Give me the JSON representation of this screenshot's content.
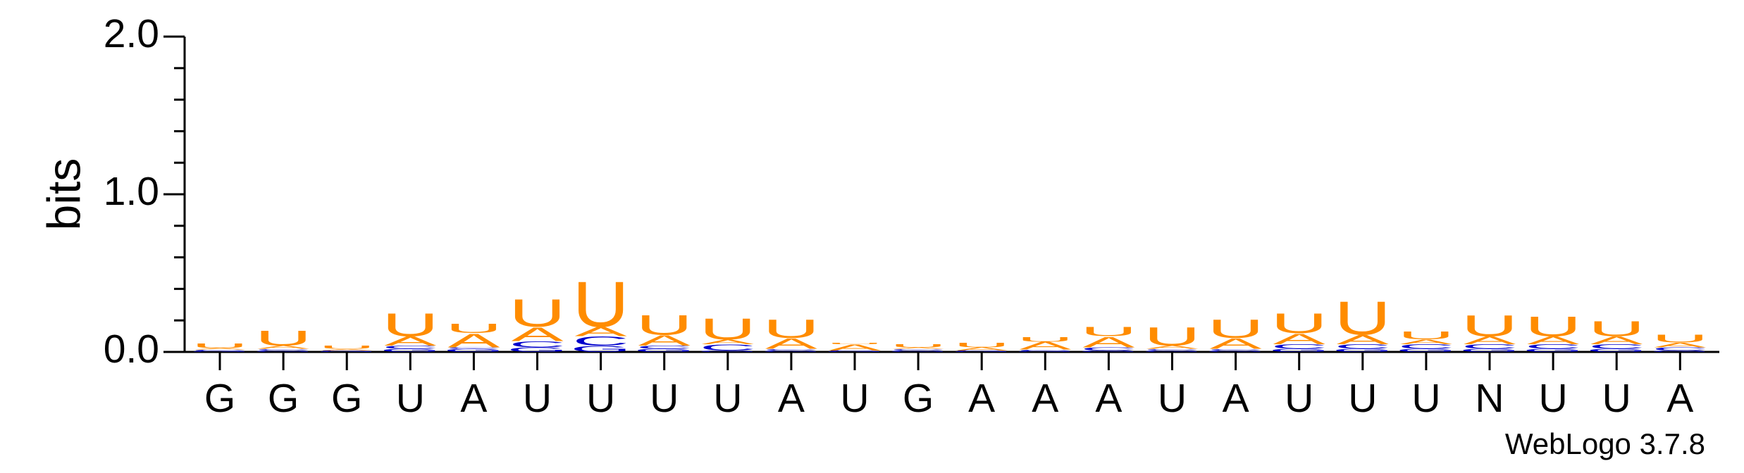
{
  "chart_data": {
    "type": "logo",
    "ylabel": "bits",
    "footer": "WebLogo 3.7.8",
    "categories": [
      "G",
      "G",
      "G",
      "U",
      "A",
      "U",
      "U",
      "U",
      "U",
      "A",
      "U",
      "G",
      "A",
      "A",
      "A",
      "U",
      "A",
      "U",
      "U",
      "U",
      "N",
      "U",
      "U",
      "A"
    ],
    "series": [
      {
        "name": "G",
        "color": "#0000cc",
        "values": [
          0.005,
          0.01,
          0.005,
          0.02,
          0.02,
          0.03,
          0.04,
          0.02,
          0.01,
          0.01,
          0.005,
          0.01,
          0.005,
          0.005,
          0.01,
          0.01,
          0.01,
          0.02,
          0.02,
          0.02,
          0.02,
          0.02,
          0.02,
          0.01
        ]
      },
      {
        "name": "C",
        "color": "#0000cc",
        "values": [
          0.01,
          0.01,
          0.005,
          0.02,
          0.01,
          0.04,
          0.06,
          0.02,
          0.04,
          0.01,
          0.005,
          0.01,
          0.005,
          0.01,
          0.02,
          0.01,
          0.01,
          0.03,
          0.03,
          0.03,
          0.03,
          0.03,
          0.03,
          0.02
        ]
      },
      {
        "name": "A",
        "color": "#ff8c00",
        "values": [
          0.01,
          0.02,
          0.01,
          0.06,
          0.09,
          0.09,
          0.06,
          0.07,
          0.03,
          0.07,
          0.04,
          0.01,
          0.02,
          0.05,
          0.07,
          0.02,
          0.07,
          0.07,
          0.06,
          0.03,
          0.05,
          0.05,
          0.05,
          0.03
        ]
      },
      {
        "name": "U",
        "color": "#ff8c00",
        "values": [
          0.03,
          0.1,
          0.02,
          0.15,
          0.06,
          0.18,
          0.3,
          0.13,
          0.14,
          0.12,
          0.01,
          0.02,
          0.03,
          0.03,
          0.06,
          0.12,
          0.12,
          0.13,
          0.22,
          0.05,
          0.14,
          0.13,
          0.1,
          0.05
        ]
      }
    ],
    "ylim": [
      0,
      2
    ],
    "yticks": [
      {
        "value": 0,
        "label": "0.0"
      },
      {
        "value": 1,
        "label": "1.0"
      },
      {
        "value": 2,
        "label": "2.0"
      }
    ],
    "yminorticks": [
      0.2,
      0.4,
      0.6,
      0.8,
      1.2,
      1.4,
      1.6,
      1.8
    ]
  }
}
